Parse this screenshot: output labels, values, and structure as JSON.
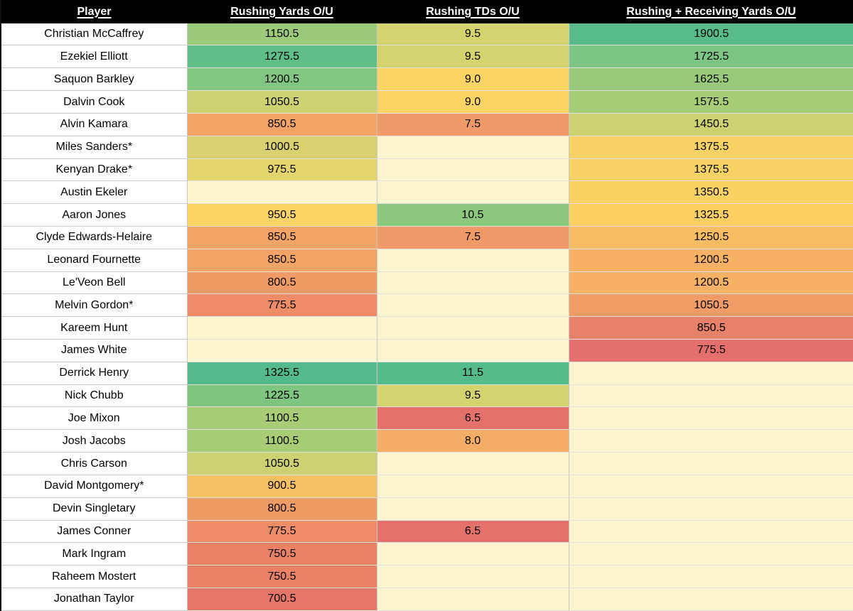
{
  "table": {
    "blank_bg": "#fcf3cf",
    "header_bg": "#000000",
    "header_text_color": "#ffffff",
    "columns": [
      {
        "label": "Player",
        "cell_name": "player-name-cell"
      },
      {
        "label": "Rushing Yards O/U",
        "cell_name": "rushing-yards-cell"
      },
      {
        "label": "Rushing TDs O/U",
        "cell_name": "rushing-tds-cell"
      },
      {
        "label": "Rushing + Receiving Yards O/U",
        "cell_name": "rushing-receiving-yards-cell"
      }
    ],
    "rows": [
      {
        "player": "Christian McCaffrey",
        "cells": [
          {
            "v": "1150.5",
            "bg": "#9cca7b"
          },
          {
            "v": "9.5",
            "bg": "#d5d36d"
          },
          {
            "v": "1900.5",
            "bg": "#57bc8a"
          }
        ]
      },
      {
        "player": "Ezekiel Elliott",
        "cells": [
          {
            "v": "1275.5",
            "bg": "#60bf89"
          },
          {
            "v": "9.5",
            "bg": "#d5d36d"
          },
          {
            "v": "1725.5",
            "bg": "#7cc583"
          }
        ]
      },
      {
        "player": "Saquon Barkley",
        "cells": [
          {
            "v": "1200.5",
            "bg": "#82c681"
          },
          {
            "v": "9.0",
            "bg": "#fbd365"
          },
          {
            "v": "1625.5",
            "bg": "#97ca7b"
          }
        ]
      },
      {
        "player": "Dalvin Cook",
        "cells": [
          {
            "v": "1050.5",
            "bg": "#cbd26f"
          },
          {
            "v": "9.0",
            "bg": "#fbd365"
          },
          {
            "v": "1575.5",
            "bg": "#a8cd77"
          }
        ]
      },
      {
        "player": "Alvin Kamara",
        "cells": [
          {
            "v": "850.5",
            "bg": "#f2a365"
          },
          {
            "v": "7.5",
            "bg": "#ef9a67"
          },
          {
            "v": "1450.5",
            "bg": "#ccd26f"
          }
        ]
      },
      {
        "player": "Miles Sanders*",
        "cells": [
          {
            "v": "1000.5",
            "bg": "#d9d16d"
          },
          {
            "v": "",
            "bg": ""
          },
          {
            "v": "1375.5",
            "bg": "#f7d163"
          }
        ]
      },
      {
        "player": "Kenyan Drake*",
        "cells": [
          {
            "v": "975.5",
            "bg": "#e5d46a"
          },
          {
            "v": "",
            "bg": ""
          },
          {
            "v": "1375.5",
            "bg": "#f7d163"
          }
        ]
      },
      {
        "player": "Austin Ekeler",
        "cells": [
          {
            "v": "",
            "bg": ""
          },
          {
            "v": "",
            "bg": ""
          },
          {
            "v": "1350.5",
            "bg": "#fad264"
          }
        ]
      },
      {
        "player": "Aaron Jones",
        "cells": [
          {
            "v": "950.5",
            "bg": "#fbd465"
          },
          {
            "v": "10.5",
            "bg": "#8cc77e"
          },
          {
            "v": "1325.5",
            "bg": "#fccf62"
          }
        ]
      },
      {
        "player": "Clyde Edwards-Helaire",
        "cells": [
          {
            "v": "850.5",
            "bg": "#f2a365"
          },
          {
            "v": "7.5",
            "bg": "#ef9a67"
          },
          {
            "v": "1250.5",
            "bg": "#f8bd63"
          }
        ]
      },
      {
        "player": "Leonard Fournette",
        "cells": [
          {
            "v": "850.5",
            "bg": "#f2a365"
          },
          {
            "v": "",
            "bg": ""
          },
          {
            "v": "1200.5",
            "bg": "#f6b164"
          }
        ]
      },
      {
        "player": "Le'Veon Bell",
        "cells": [
          {
            "v": "800.5",
            "bg": "#f09b66"
          },
          {
            "v": "",
            "bg": ""
          },
          {
            "v": "1200.5",
            "bg": "#f6b164"
          }
        ]
      },
      {
        "player": "Melvin Gordon*",
        "cells": [
          {
            "v": "775.5",
            "bg": "#ee8c67"
          },
          {
            "v": "",
            "bg": ""
          },
          {
            "v": "1050.5",
            "bg": "#f19c66"
          }
        ]
      },
      {
        "player": "Kareem Hunt",
        "cells": [
          {
            "v": "",
            "bg": ""
          },
          {
            "v": "",
            "bg": ""
          },
          {
            "v": "850.5",
            "bg": "#e8816a"
          }
        ]
      },
      {
        "player": "James White",
        "cells": [
          {
            "v": "",
            "bg": ""
          },
          {
            "v": "",
            "bg": ""
          },
          {
            "v": "775.5",
            "bg": "#e56f6a"
          }
        ]
      },
      {
        "player": "Derrick Henry",
        "cells": [
          {
            "v": "1325.5",
            "bg": "#53bb8b"
          },
          {
            "v": "11.5",
            "bg": "#54bb8b"
          },
          {
            "v": "",
            "bg": ""
          }
        ]
      },
      {
        "player": "Nick Chubb",
        "cells": [
          {
            "v": "1225.5",
            "bg": "#7ec580"
          },
          {
            "v": "9.5",
            "bg": "#d5d36d"
          },
          {
            "v": "",
            "bg": ""
          }
        ]
      },
      {
        "player": "Joe Mixon",
        "cells": [
          {
            "v": "1100.5",
            "bg": "#a8cd77"
          },
          {
            "v": "6.5",
            "bg": "#e4726b"
          },
          {
            "v": "",
            "bg": ""
          }
        ]
      },
      {
        "player": "Josh Jacobs",
        "cells": [
          {
            "v": "1100.5",
            "bg": "#a8cd77"
          },
          {
            "v": "8.0",
            "bg": "#f5ac64"
          },
          {
            "v": "",
            "bg": ""
          }
        ]
      },
      {
        "player": "Chris Carson",
        "cells": [
          {
            "v": "1050.5",
            "bg": "#cbd26f"
          },
          {
            "v": "",
            "bg": ""
          },
          {
            "v": "",
            "bg": ""
          }
        ]
      },
      {
        "player": "David Montgomery*",
        "cells": [
          {
            "v": "900.5",
            "bg": "#f7c163"
          },
          {
            "v": "",
            "bg": ""
          },
          {
            "v": "",
            "bg": ""
          }
        ]
      },
      {
        "player": "Devin Singletary",
        "cells": [
          {
            "v": "800.5",
            "bg": "#f09b66"
          },
          {
            "v": "",
            "bg": ""
          },
          {
            "v": "",
            "bg": ""
          }
        ]
      },
      {
        "player": "James Conner",
        "cells": [
          {
            "v": "775.5",
            "bg": "#ee8c67"
          },
          {
            "v": "6.5",
            "bg": "#e4726b"
          },
          {
            "v": "",
            "bg": ""
          }
        ]
      },
      {
        "player": "Mark Ingram",
        "cells": [
          {
            "v": "750.5",
            "bg": "#eb8266"
          },
          {
            "v": "",
            "bg": ""
          },
          {
            "v": "",
            "bg": ""
          }
        ]
      },
      {
        "player": "Raheem Mostert",
        "cells": [
          {
            "v": "750.5",
            "bg": "#eb8266"
          },
          {
            "v": "",
            "bg": ""
          },
          {
            "v": "",
            "bg": ""
          }
        ]
      },
      {
        "player": "Jonathan Taylor",
        "cells": [
          {
            "v": "700.5",
            "bg": "#e77669"
          },
          {
            "v": "",
            "bg": ""
          },
          {
            "v": "",
            "bg": ""
          }
        ]
      }
    ]
  },
  "chart_data": {
    "type": "table",
    "title": "",
    "columns": [
      "Player",
      "Rushing Yards O/U",
      "Rushing TDs O/U",
      "Rushing + Receiving Yards O/U"
    ],
    "color_scale": {
      "low": "#e67669",
      "mid": "#fbd365",
      "high": "#57bc8a",
      "blank": "#fcf3cf"
    },
    "rows": [
      [
        "Christian McCaffrey",
        1150.5,
        9.5,
        1900.5
      ],
      [
        "Ezekiel Elliott",
        1275.5,
        9.5,
        1725.5
      ],
      [
        "Saquon Barkley",
        1200.5,
        9.0,
        1625.5
      ],
      [
        "Dalvin Cook",
        1050.5,
        9.0,
        1575.5
      ],
      [
        "Alvin Kamara",
        850.5,
        7.5,
        1450.5
      ],
      [
        "Miles Sanders*",
        1000.5,
        null,
        1375.5
      ],
      [
        "Kenyan Drake*",
        975.5,
        null,
        1375.5
      ],
      [
        "Austin Ekeler",
        null,
        null,
        1350.5
      ],
      [
        "Aaron Jones",
        950.5,
        10.5,
        1325.5
      ],
      [
        "Clyde Edwards-Helaire",
        850.5,
        7.5,
        1250.5
      ],
      [
        "Leonard Fournette",
        850.5,
        null,
        1200.5
      ],
      [
        "Le'Veon Bell",
        800.5,
        null,
        1200.5
      ],
      [
        "Melvin Gordon*",
        775.5,
        null,
        1050.5
      ],
      [
        "Kareem Hunt",
        null,
        null,
        850.5
      ],
      [
        "James White",
        null,
        null,
        775.5
      ],
      [
        "Derrick Henry",
        1325.5,
        11.5,
        null
      ],
      [
        "Nick Chubb",
        1225.5,
        9.5,
        null
      ],
      [
        "Joe Mixon",
        1100.5,
        6.5,
        null
      ],
      [
        "Josh Jacobs",
        1100.5,
        8.0,
        null
      ],
      [
        "Chris Carson",
        1050.5,
        null,
        null
      ],
      [
        "David Montgomery*",
        900.5,
        null,
        null
      ],
      [
        "Devin Singletary",
        800.5,
        null,
        null
      ],
      [
        "James Conner",
        775.5,
        6.5,
        null
      ],
      [
        "Mark Ingram",
        750.5,
        null,
        null
      ],
      [
        "Raheem Mostert",
        750.5,
        null,
        null
      ],
      [
        "Jonathan Taylor",
        700.5,
        null,
        null
      ]
    ]
  }
}
